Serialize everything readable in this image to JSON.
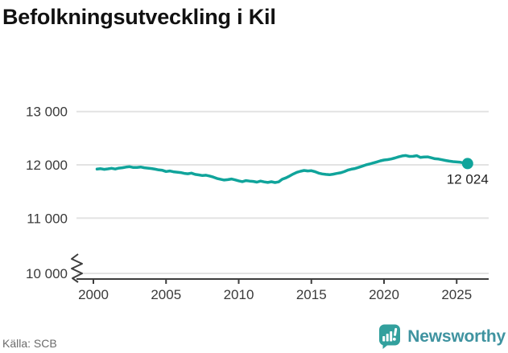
{
  "title": "Befolkningsutveckling i Kil",
  "source": "Källa: SCB",
  "end_label": "12 024",
  "logo": {
    "text": "Newsworthy"
  },
  "colors": {
    "line": "#10a49b",
    "grid": "#e3e3e3",
    "axis": "#3d3d3d",
    "tick_label": "#3a3a3a",
    "end_label": "#222222",
    "logo_mark": "#32a09d",
    "logo_text": "#3f93a0"
  },
  "chart_data": {
    "type": "line",
    "title": "Befolkningsutveckling i Kil",
    "xlabel": "",
    "ylabel": "",
    "grid": "horizontal",
    "x_ticks": [
      2000,
      2005,
      2010,
      2015,
      2020,
      2025
    ],
    "y_ticks": [
      "13 000",
      "12 000",
      "11 000",
      "10 000"
    ],
    "y_tick_values": [
      13000,
      12000,
      11000,
      10000
    ],
    "ylim_display": [
      10000,
      13300
    ],
    "axis_break_at_bottom": true,
    "last_value": 12024,
    "last_value_label": "12 024",
    "source": "SCB",
    "series": [
      {
        "name": "population",
        "x_start": 2000.25,
        "x_step": 0.25,
        "values": [
          11920,
          11928,
          11915,
          11925,
          11935,
          11922,
          11938,
          11945,
          11958,
          11965,
          11950,
          11952,
          11960,
          11945,
          11938,
          11930,
          11918,
          11905,
          11898,
          11875,
          11885,
          11870,
          11862,
          11855,
          11840,
          11832,
          11845,
          11820,
          11812,
          11800,
          11805,
          11790,
          11770,
          11745,
          11730,
          11715,
          11722,
          11735,
          11718,
          11700,
          11685,
          11705,
          11695,
          11690,
          11675,
          11695,
          11680,
          11670,
          11683,
          11668,
          11680,
          11730,
          11755,
          11790,
          11828,
          11860,
          11880,
          11895,
          11885,
          11890,
          11872,
          11845,
          11830,
          11820,
          11815,
          11825,
          11838,
          11850,
          11872,
          11900,
          11918,
          11930,
          11952,
          11975,
          11998,
          12015,
          12035,
          12055,
          12075,
          12090,
          12098,
          12110,
          12128,
          12150,
          12168,
          12175,
          12158,
          12160,
          12172,
          12140,
          12148,
          12150,
          12132,
          12115,
          12108,
          12095,
          12082,
          12070,
          12060,
          12055,
          12048,
          12035,
          12024
        ]
      }
    ]
  }
}
